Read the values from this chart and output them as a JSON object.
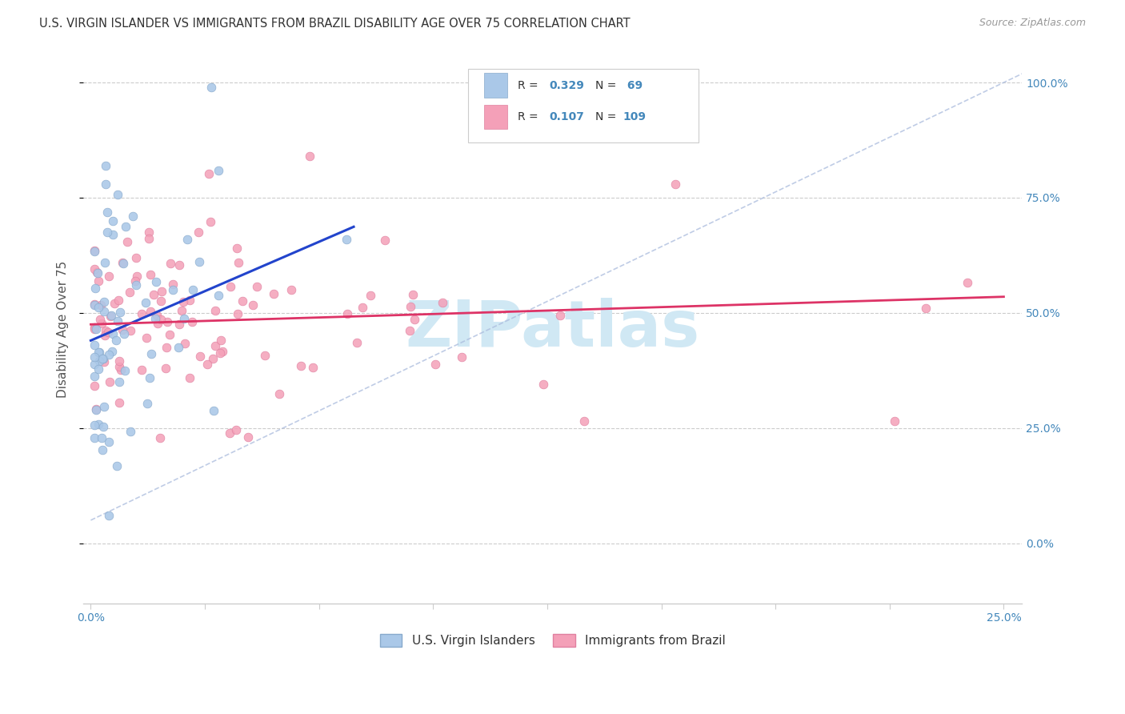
{
  "title": "U.S. VIRGIN ISLANDER VS IMMIGRANTS FROM BRAZIL DISABILITY AGE OVER 75 CORRELATION CHART",
  "source": "Source: ZipAtlas.com",
  "ylabel": "Disability Age Over 75",
  "color_blue": "#aac8e8",
  "color_blue_edge": "#88aacc",
  "color_pink": "#f4a0b8",
  "color_pink_edge": "#e080a0",
  "trendline_blue": "#2244cc",
  "trendline_pink": "#dd3366",
  "trendline_dashed": "#aabbdd",
  "watermark_color": "#d0e8f4",
  "label_color": "#4488bb",
  "title_color": "#333333",
  "source_color": "#999999",
  "grid_color": "#cccccc",
  "xlim": [
    0.0,
    0.25
  ],
  "ylim": [
    0.0,
    1.0
  ],
  "y_ticks": [
    0.0,
    0.25,
    0.5,
    0.75,
    1.0
  ],
  "y_tick_labels": [
    "0.0%",
    "25.0%",
    "50.0%",
    "75.0%",
    "100.0%"
  ],
  "legend_R1": "0.329",
  "legend_N1": " 69",
  "legend_R2": "0.107",
  "legend_N2": "109",
  "legend_label1": "U.S. Virgin Islanders",
  "legend_label2": "Immigrants from Brazil",
  "watermark": "ZIPatlas"
}
